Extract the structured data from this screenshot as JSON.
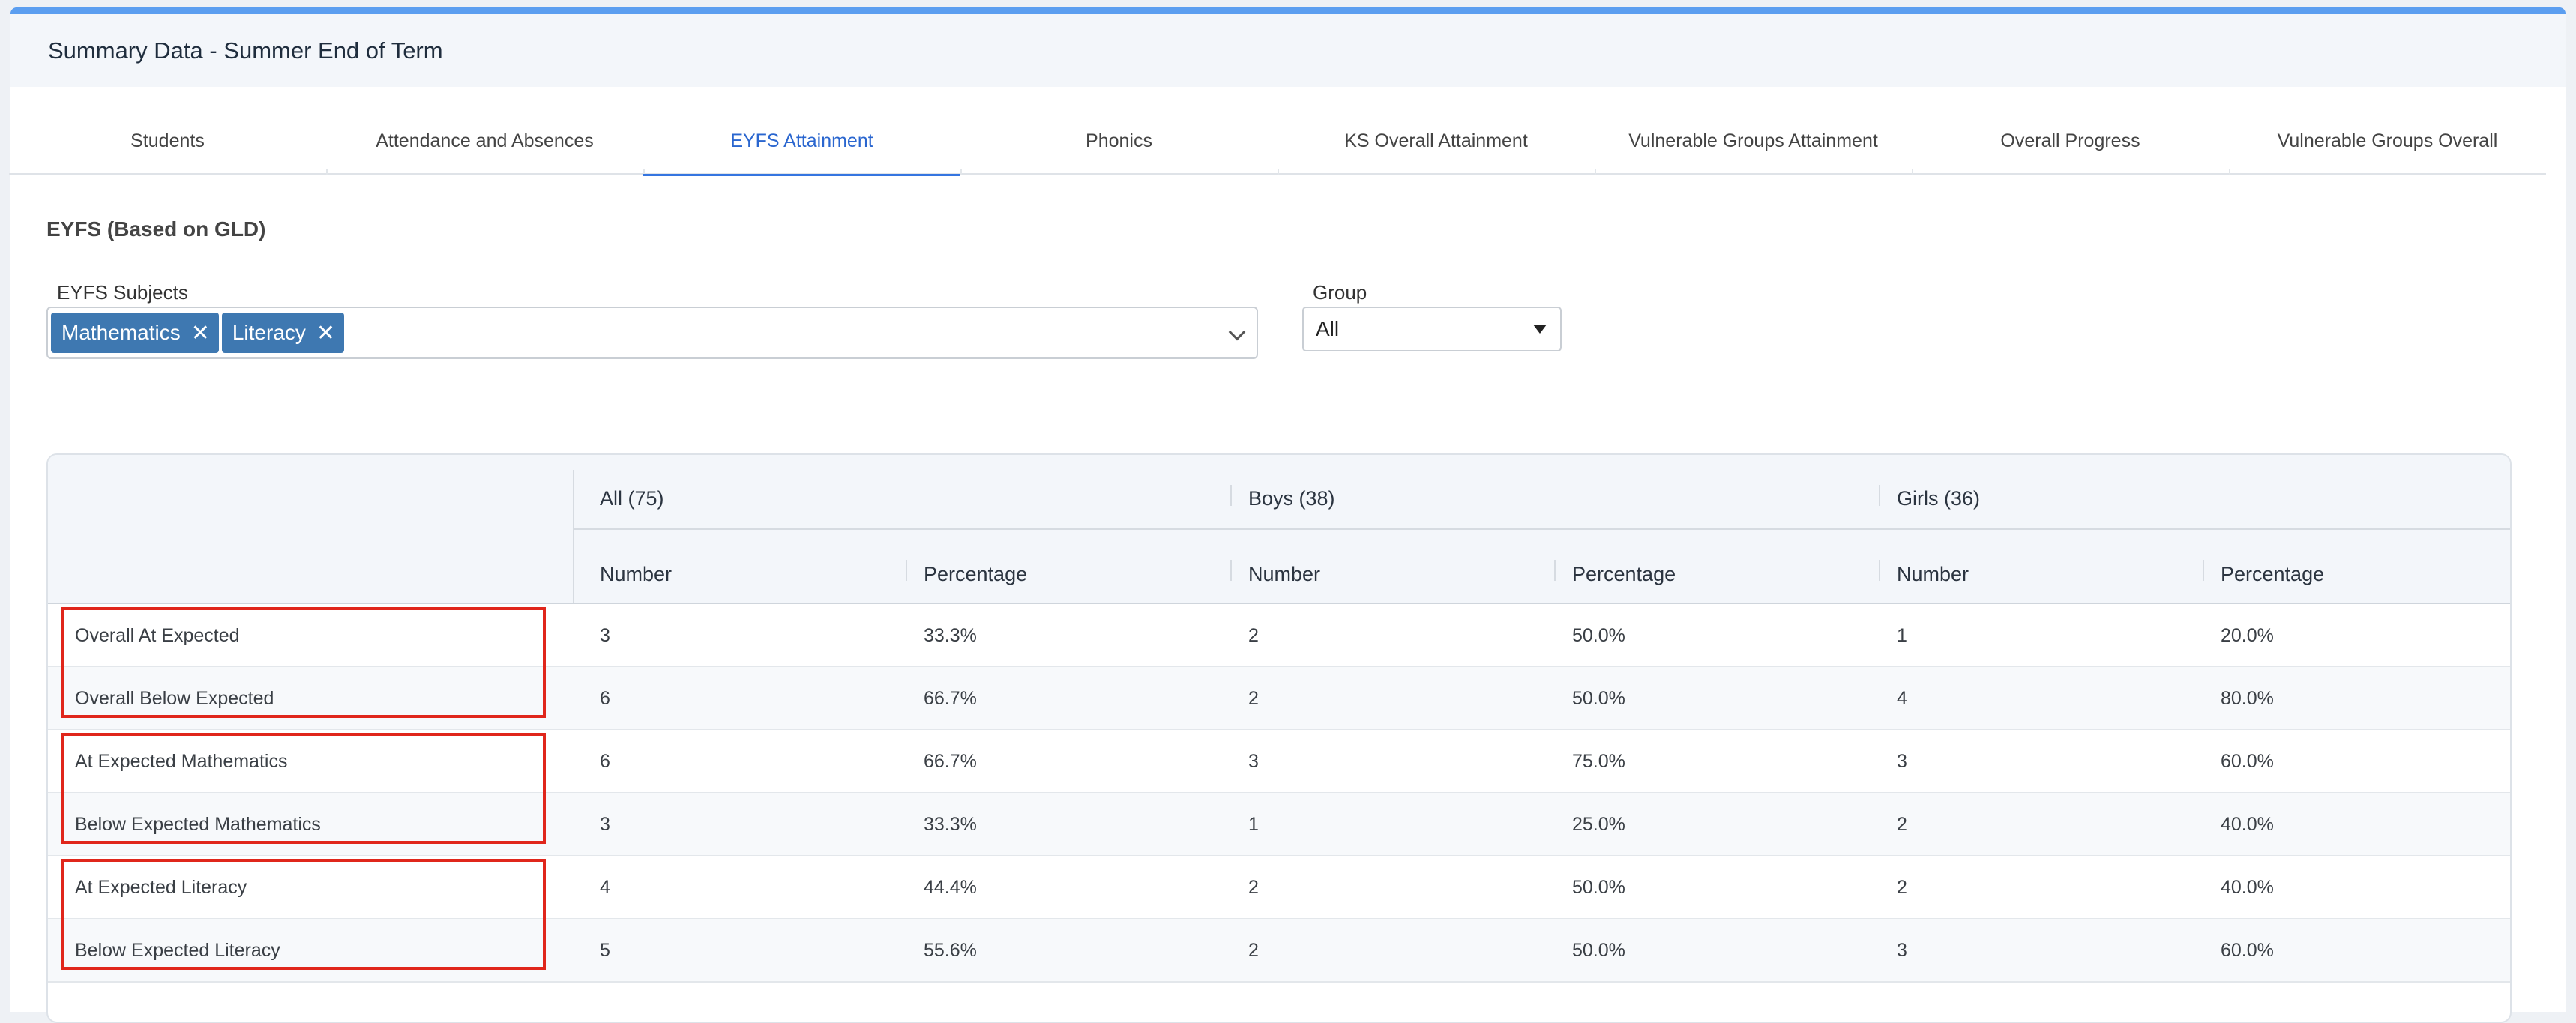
{
  "header": {
    "title": "Summary Data - Summer End of Term"
  },
  "tabs": [
    {
      "label": "Students",
      "active": false
    },
    {
      "label": "Attendance and Absences",
      "active": false
    },
    {
      "label": "EYFS Attainment",
      "active": true
    },
    {
      "label": "Phonics",
      "active": false
    },
    {
      "label": "KS Overall Attainment",
      "active": false
    },
    {
      "label": "Vulnerable Groups Attainment",
      "active": false
    },
    {
      "label": "Overall Progress",
      "active": false
    },
    {
      "label": "Vulnerable Groups Overall",
      "active": false
    }
  ],
  "section": {
    "title": "EYFS (Based on GLD)"
  },
  "filters": {
    "subjects_label": "EYFS Subjects",
    "subjects": [
      {
        "label": "Mathematics",
        "remove": "✕"
      },
      {
        "label": "Literacy",
        "remove": "✕"
      }
    ],
    "group_label": "Group",
    "group_value": "All"
  },
  "table": {
    "groups": [
      "All (75)",
      "Boys (38)",
      "Girls (36)"
    ],
    "sub_headers": [
      "Number",
      "Percentage",
      "Number",
      "Percentage",
      "Number",
      "Percentage"
    ],
    "rows": [
      {
        "label": "Overall At Expected",
        "cells": [
          "3",
          "33.3%",
          "2",
          "50.0%",
          "1",
          "20.0%"
        ]
      },
      {
        "label": "Overall Below Expected",
        "cells": [
          "6",
          "66.7%",
          "2",
          "50.0%",
          "4",
          "80.0%"
        ]
      },
      {
        "label": "At Expected Mathematics",
        "cells": [
          "6",
          "66.7%",
          "3",
          "75.0%",
          "3",
          "60.0%"
        ]
      },
      {
        "label": "Below Expected Mathematics",
        "cells": [
          "3",
          "33.3%",
          "1",
          "25.0%",
          "2",
          "40.0%"
        ]
      },
      {
        "label": "At Expected Literacy",
        "cells": [
          "4",
          "44.4%",
          "2",
          "50.0%",
          "2",
          "40.0%"
        ]
      },
      {
        "label": "Below Expected Literacy",
        "cells": [
          "5",
          "55.6%",
          "2",
          "50.0%",
          "3",
          "60.0%"
        ]
      }
    ]
  },
  "colors": {
    "accent": "#3575e0",
    "chip": "#3e78b1",
    "highlight": "#e0261b"
  }
}
